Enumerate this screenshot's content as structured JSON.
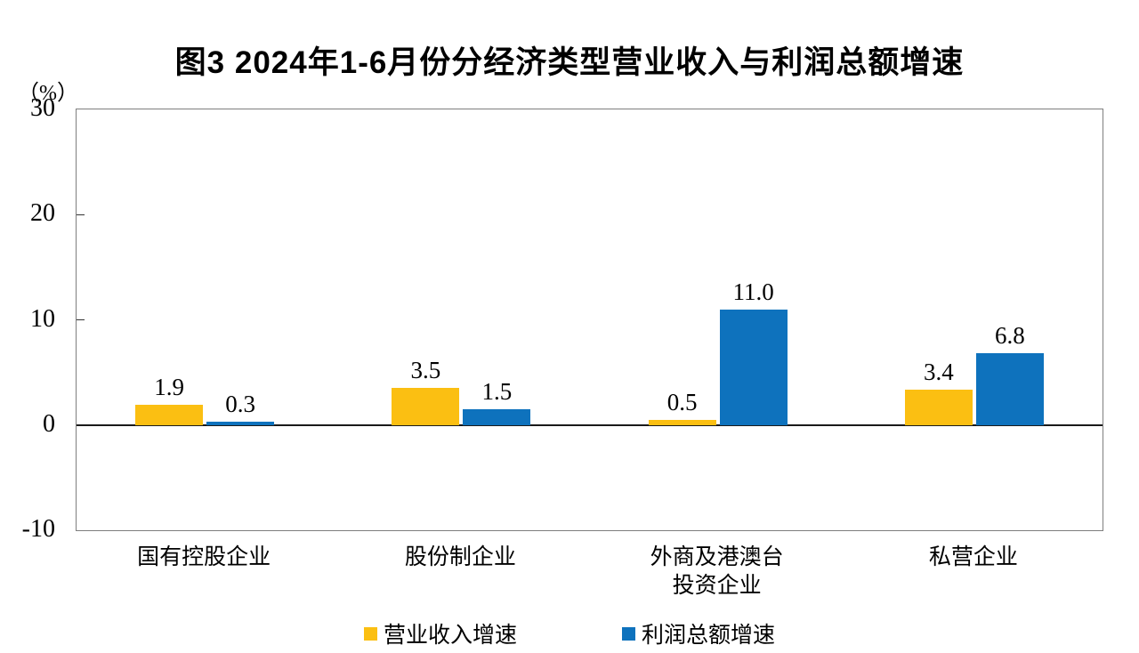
{
  "chart": {
    "title": "图3 2024年1-6月份分经济类型营业收入与利润总额增速",
    "unit_label": "（%）"
  },
  "chart_data": {
    "type": "bar",
    "title": "图3 2024年1-6月份分经济类型营业收入与利润总额增速",
    "ylabel": "（%）",
    "xlabel": "",
    "categories": [
      "国有控股企业",
      "股份制企业",
      "外商及港澳台\n投资企业",
      "私营企业"
    ],
    "series": [
      {
        "key": "revenue-growth",
        "name": "营业收入增速",
        "color": "#FBBF12",
        "values": [
          1.9,
          3.5,
          0.5,
          3.4
        ],
        "labels": [
          "1.9",
          "3.5",
          "0.5",
          "3.4"
        ]
      },
      {
        "key": "profit-growth",
        "name": "利润总额增速",
        "color": "#0E72BD",
        "values": [
          0.3,
          1.5,
          11.0,
          6.8
        ],
        "labels": [
          "0.3",
          "1.5",
          "11.0",
          "6.8"
        ]
      }
    ],
    "ylim": [
      -10,
      30
    ],
    "yticks": [
      30,
      20,
      10,
      0,
      -10
    ],
    "grid": false,
    "legend_position": "bottom"
  }
}
